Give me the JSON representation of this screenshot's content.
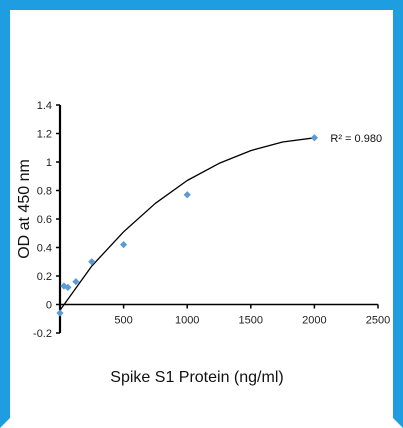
{
  "chart_data": {
    "type": "scatter",
    "title": "",
    "xlabel": "Spike S1 Protein (ng/ml)",
    "ylabel": "OD at 450 nm",
    "xlim": [
      0,
      2500
    ],
    "ylim": [
      -0.2,
      1.4
    ],
    "xticks": [
      0,
      500,
      1000,
      1500,
      2000,
      2500
    ],
    "yticks": [
      -0.2,
      0,
      0.2,
      0.4,
      0.6,
      0.8,
      1,
      1.2,
      1.4
    ],
    "xtick_labels": [
      "",
      "500",
      "1000",
      "1500",
      "2000",
      "2500"
    ],
    "ytick_labels": [
      "-0.2",
      "0",
      "0.2",
      "0.4",
      "0.6",
      "0.8",
      "1",
      "1.2",
      "1.4"
    ],
    "grid": false,
    "series": [
      {
        "marker": "diamond",
        "color": "#5b9bd5",
        "points": [
          {
            "x": 0,
            "y": -0.06
          },
          {
            "x": 31,
            "y": 0.13
          },
          {
            "x": 62,
            "y": 0.12
          },
          {
            "x": 125,
            "y": 0.16
          },
          {
            "x": 250,
            "y": 0.3
          },
          {
            "x": 500,
            "y": 0.42
          },
          {
            "x": 1000,
            "y": 0.77
          },
          {
            "x": 2000,
            "y": 1.17
          }
        ]
      }
    ],
    "trendline": {
      "type": "polynomial",
      "color": "#000000",
      "x_range": [
        0,
        2000
      ],
      "points": [
        {
          "x": 0,
          "y": -0.04
        },
        {
          "x": 250,
          "y": 0.27
        },
        {
          "x": 500,
          "y": 0.51
        },
        {
          "x": 750,
          "y": 0.71
        },
        {
          "x": 1000,
          "y": 0.87
        },
        {
          "x": 1250,
          "y": 0.99
        },
        {
          "x": 1500,
          "y": 1.08
        },
        {
          "x": 1750,
          "y": 1.14
        },
        {
          "x": 2000,
          "y": 1.17
        }
      ]
    },
    "annotation": "R² = 0.980"
  }
}
